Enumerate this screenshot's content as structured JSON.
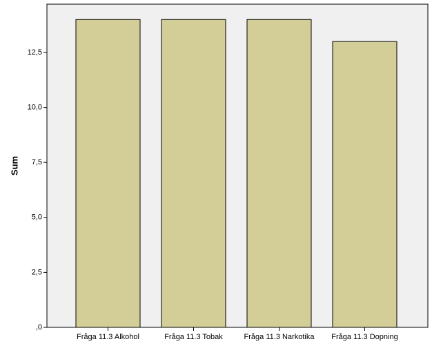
{
  "chart_data": {
    "type": "bar",
    "y_label": "Sum",
    "categories": [
      "Fråga 11.3 Alkohol",
      "Fråga 11.3 Tobak",
      "Fråga 11.3 Narkotika",
      "Fråga 11.3 Dopning"
    ],
    "values": [
      14,
      14,
      14,
      13
    ],
    "color": "#d3ce98",
    "ylim": [
      0,
      14.7
    ],
    "yticks": [
      {
        "value": 0,
        "label": ",0"
      },
      {
        "value": 2.5,
        "label": "2,5"
      },
      {
        "value": 5,
        "label": "5,0"
      },
      {
        "value": 7.5,
        "label": "7,5"
      },
      {
        "value": 10,
        "label": "10,0"
      },
      {
        "value": 12.5,
        "label": "12,5"
      }
    ],
    "grid": false
  }
}
